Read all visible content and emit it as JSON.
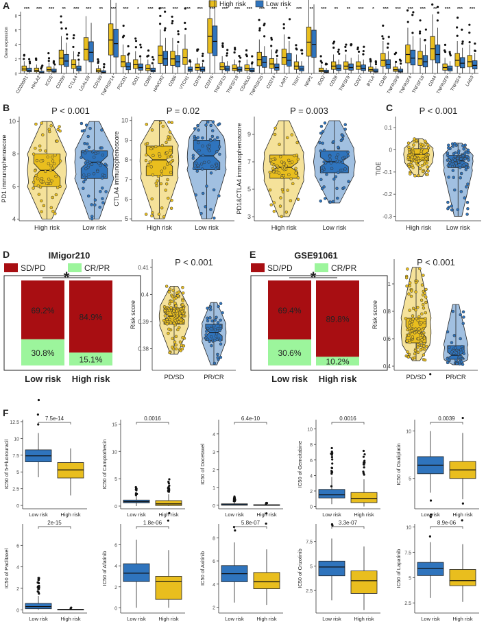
{
  "colors": {
    "high": "#E9BE1E",
    "low": "#2F74BD",
    "sdpd": "#A80E12",
    "crpr": "#9CF59C"
  },
  "panelA": {
    "letter": "A",
    "legend": {
      "high": "High risk",
      "low": "Low risk"
    },
    "ylabel": "Gene expression",
    "yticks": [
      0,
      2,
      4,
      6,
      8
    ],
    "ylim": [
      0,
      8.5
    ],
    "genes": [
      "CD200R1",
      "HHLA2",
      "ICOS",
      "CD200",
      "CTLA4",
      "LGALS9",
      "CD160",
      "TNFRSF14",
      "PDCD1",
      "IDO1",
      "CD80",
      "HAVCR2",
      "CD86",
      "VTCN1",
      "CD70",
      "CD276",
      "TNFSF15",
      "TNFSF18",
      "CD40LG",
      "TNFRSF25",
      "CD274",
      "LAIR1",
      "TIGIT",
      "NRP1",
      "IDO2",
      "CD28",
      "TNFSF9",
      "CD27",
      "BTLA",
      "CD48",
      "TNFRSF8",
      "TNFRSF4",
      "TNFSF18",
      "CD44",
      "TNFRSF9",
      "TNFSF4",
      "LAG3"
    ],
    "signif": [
      "***",
      "***",
      "***",
      "**",
      "***",
      "***",
      "**",
      "***",
      "***",
      "*",
      "***",
      "***",
      "***",
      "***",
      "***",
      "***",
      "***",
      "***",
      "***",
      "***",
      "***",
      "*",
      "***",
      "**",
      "***",
      "**",
      "**",
      "***",
      "*",
      "***",
      "***",
      "***",
      "***",
      "**",
      "***",
      "***",
      "***"
    ],
    "median_high": [
      0.6,
      0.4,
      0.5,
      2.1,
      1.2,
      3.3,
      0.35,
      4.6,
      1.6,
      1.2,
      0.7,
      2.5,
      2.0,
      2.2,
      0.8,
      5.1,
      0.9,
      0.7,
      0.7,
      1.9,
      1.3,
      2.2,
      1.0,
      4.3,
      0.4,
      1.0,
      1.0,
      1.0,
      0.5,
      1.8,
      0.5,
      2.6,
      2.0,
      3.4,
      0.8,
      1.8,
      1.6
    ],
    "median_low": [
      0.4,
      0.1,
      0.3,
      1.7,
      0.6,
      2.9,
      0.15,
      4.1,
      0.9,
      0.8,
      0.4,
      2.0,
      1.6,
      0.5,
      0.5,
      4.4,
      0.6,
      0.5,
      0.4,
      1.5,
      0.8,
      1.8,
      0.6,
      4.0,
      0.2,
      0.7,
      0.8,
      0.7,
      0.3,
      1.2,
      0.3,
      2.1,
      1.6,
      2.6,
      0.6,
      1.4,
      1.1
    ]
  },
  "panelB": {
    "letter": "B",
    "xcats": [
      "High risk",
      "Low risk"
    ],
    "plots": [
      {
        "ylabel": "PD1 immunophenoscore",
        "p": "P < 0.001",
        "ylim": [
          3.9,
          10.3
        ],
        "yticks": [
          4,
          6,
          8,
          10
        ],
        "high": {
          "q1": 6,
          "med": 7,
          "q3": 8,
          "min": 4,
          "max": 10
        },
        "low": {
          "q1": 6.5,
          "med": 7.5,
          "q3": 8.2,
          "min": 4,
          "max": 10
        }
      },
      {
        "ylabel": "CTLA4 immunophenoscore",
        "p": "P = 0.02",
        "ylim": [
          4.9,
          10.2
        ],
        "yticks": [
          5,
          6,
          7,
          8,
          9,
          10
        ],
        "high": {
          "q1": 7.2,
          "med": 8,
          "q3": 8.7,
          "min": 5,
          "max": 10
        },
        "low": {
          "q1": 7.5,
          "med": 8.2,
          "q3": 9,
          "min": 5,
          "max": 10
        }
      },
      {
        "ylabel": "PD1&CTLA4 immunophenoscore",
        "p": "P = 0.003",
        "ylim": [
          2.7,
          10.3
        ],
        "yticks": [
          3,
          5,
          7,
          9
        ],
        "high": {
          "q1": 5.8,
          "med": 6.6,
          "q3": 7.5,
          "min": 3,
          "max": 10
        },
        "low": {
          "q1": 6.2,
          "med": 7,
          "q3": 7.8,
          "min": 4,
          "max": 10
        }
      }
    ]
  },
  "panelC": {
    "letter": "C",
    "ylabel": "TIDE",
    "p": "P < 0.001",
    "xcats": [
      "High risk",
      "Low risk"
    ],
    "ylim": [
      -0.32,
      0.15
    ],
    "yticks": [
      -0.3,
      -0.2,
      -0.1,
      0.0,
      0.1
    ],
    "high": {
      "q1": -0.05,
      "med": -0.02,
      "q3": 0.005,
      "min": -0.12,
      "max": 0.05
    },
    "low": {
      "q1": -0.08,
      "med": -0.05,
      "q3": -0.025,
      "min": -0.3,
      "max": 0.03
    }
  },
  "panelD": {
    "letter": "D",
    "title": "IMigor210",
    "legend": [
      "SD/PD",
      "CR/PR"
    ],
    "bars": [
      {
        "label": "Low risk",
        "sdpd": 69.2,
        "crpr": 30.8,
        "sdpd_text": "69.2%",
        "crpr_text": "30.8%"
      },
      {
        "label": "High risk",
        "sdpd": 84.9,
        "crpr": 15.1,
        "sdpd_text": "84.9%",
        "crpr_text": "15.1%"
      }
    ],
    "star": "*",
    "violin": {
      "ylabel": "Risk score",
      "p": "P < 0.001",
      "xcats": [
        "PD/SD",
        "PR/CR"
      ],
      "ylim": [
        0.372,
        0.413
      ],
      "yticks": [
        0.38,
        0.39,
        0.4,
        0.41
      ],
      "a": {
        "q1": 0.389,
        "med": 0.392,
        "q3": 0.395,
        "min": 0.378,
        "max": 0.403
      },
      "b": {
        "q1": 0.383,
        "med": 0.386,
        "q3": 0.389,
        "min": 0.374,
        "max": 0.397
      }
    }
  },
  "panelE": {
    "letter": "E",
    "title": "GSE91061",
    "legend": [
      "SD/PD",
      "CR/PR"
    ],
    "bars": [
      {
        "label": "Low risk",
        "sdpd": 69.4,
        "crpr": 30.6,
        "sdpd_text": "69.4%",
        "crpr_text": "30.6%"
      },
      {
        "label": "High risk",
        "sdpd": 89.8,
        "crpr": 10.2,
        "sdpd_text": "89.8%",
        "crpr_text": "10.2%"
      }
    ],
    "star": "*",
    "violin": {
      "ylabel": "Risk score",
      "p": "P < 0.001",
      "xcats": [
        "PD/SD",
        "PR/CR"
      ],
      "ylim": [
        0.37,
        1.18
      ],
      "yticks": [
        0.4,
        0.6,
        0.8,
        1.0
      ],
      "a": {
        "q1": 0.57,
        "med": 0.65,
        "q3": 0.75,
        "min": 0.44,
        "max": 1.12
      },
      "b": {
        "q1": 0.45,
        "med": 0.48,
        "q3": 0.55,
        "min": 0.41,
        "max": 0.85
      }
    }
  },
  "panelF": {
    "letter": "F",
    "xcats": [
      "Low risk",
      "High  risk"
    ],
    "plots": [
      {
        "ylabel": "IC50 of 5-Fluorouracil",
        "p": "7.5e-14",
        "ylim": [
          -0.5,
          12.8
        ],
        "yticks": [
          0,
          2.5,
          5,
          7.5,
          10,
          12.5
        ],
        "low": {
          "q1": 6.5,
          "med": 7.4,
          "q3": 8.3,
          "min": 4.2,
          "max": 10.8
        },
        "high": {
          "q1": 4.1,
          "med": 5.3,
          "q3": 6.4,
          "min": 1.5,
          "max": 8.5
        }
      },
      {
        "ylabel": "IC50 of Camptothecin",
        "p": "0.0016",
        "ylim": [
          -0.5,
          15.8
        ],
        "yticks": [
          0,
          5,
          10,
          15
        ],
        "low": {
          "q1": 0.6,
          "med": 0.8,
          "q3": 1.1,
          "min": 0,
          "max": 1.8
        },
        "high": {
          "q1": 0.1,
          "med": 0.4,
          "q3": 1.0,
          "min": 0,
          "max": 2.2
        }
      },
      {
        "ylabel": "IC50 of Docetaxel",
        "p": "6.4e-10",
        "ylim": [
          -0.2,
          4.8
        ],
        "yticks": [
          0,
          1,
          2,
          3,
          4
        ],
        "low": {
          "q1": 0,
          "med": 0.03,
          "q3": 0.08,
          "min": 0,
          "max": 0.2
        },
        "high": {
          "q1": 0,
          "med": 0.01,
          "q3": 0.03,
          "min": 0,
          "max": 0.06
        }
      },
      {
        "ylabel": "IC50 of Gemcitabine",
        "p": "0.0016",
        "ylim": [
          -0.3,
          11.2
        ],
        "yticks": [
          0,
          2,
          4,
          6,
          8,
          10
        ],
        "low": {
          "q1": 1.1,
          "med": 1.5,
          "q3": 2.2,
          "min": 0.3,
          "max": 3.8
        },
        "high": {
          "q1": 0.5,
          "med": 1.0,
          "q3": 1.8,
          "min": 0,
          "max": 3.5
        }
      },
      {
        "ylabel": "IC50 of Oxaliplatin",
        "p": "0.0039",
        "ylim": [
          1.8,
          11.2
        ],
        "yticks": [
          5,
          10
        ],
        "low": {
          "q1": 5.5,
          "med": 6.4,
          "q3": 7.3,
          "min": 3.5,
          "max": 10
        },
        "high": {
          "q1": 5.0,
          "med": 5.9,
          "q3": 6.8,
          "min": 2.8,
          "max": 9.8
        }
      },
      {
        "ylabel": "IC50 of Paclitaxel",
        "p": "2e-15",
        "ylim": [
          -0.3,
          8.0
        ],
        "yticks": [
          0,
          2,
          4,
          6
        ],
        "low": {
          "q1": 0.1,
          "med": 0.3,
          "q3": 0.6,
          "min": 0,
          "max": 1.3
        },
        "high": {
          "q1": 0,
          "med": 0.02,
          "q3": 0.05,
          "min": 0,
          "max": 0.1
        }
      },
      {
        "ylabel": "IC50 of Afatinib",
        "p": "1.8e-06",
        "ylim": [
          -0.5,
          8.0
        ],
        "yticks": [
          0,
          2,
          4,
          6
        ],
        "low": {
          "q1": 2.5,
          "med": 3.3,
          "q3": 4.2,
          "min": 0,
          "max": 6.5
        },
        "high": {
          "q1": 0.8,
          "med": 2.5,
          "q3": 3.0,
          "min": 0,
          "max": 5.5
        }
      },
      {
        "ylabel": "IC50 of Axitinib",
        "p": "5.8e-07",
        "ylim": [
          1.5,
          9.2
        ],
        "yticks": [
          2,
          4,
          6,
          8
        ],
        "low": {
          "q1": 4.2,
          "med": 4.9,
          "q3": 5.6,
          "min": 2.4,
          "max": 7.6
        },
        "high": {
          "q1": 3.6,
          "med": 4.2,
          "q3": 5.0,
          "min": 2.2,
          "max": 7.0
        }
      },
      {
        "ylabel": "IC50 of Crizotinib",
        "p": "3.3e-07",
        "ylim": [
          0.2,
          9.3
        ],
        "yticks": [
          2.5,
          5.0,
          7.5
        ],
        "low": {
          "q1": 4.0,
          "med": 4.9,
          "q3": 5.5,
          "min": 1.5,
          "max": 7.8
        },
        "high": {
          "q1": 2.2,
          "med": 3.5,
          "q3": 4.5,
          "min": 0.5,
          "max": 7.0
        }
      },
      {
        "ylabel": "IC50 of Lapatinib",
        "p": "8.9e-06",
        "ylim": [
          1.5,
          10.3
        ],
        "yticks": [
          2.5,
          5.0,
          7.5,
          10.0
        ],
        "low": {
          "q1": 5.2,
          "med": 5.9,
          "q3": 6.5,
          "min": 3.0,
          "max": 8.5
        },
        "high": {
          "q1": 4.2,
          "med": 4.7,
          "q3": 5.8,
          "min": 2.6,
          "max": 8.3
        }
      }
    ]
  },
  "chart_data": [
    {
      "type": "box",
      "panel": "A",
      "ylabel": "Gene expression",
      "categories": [
        "CD200R1",
        "HHLA2",
        "ICOS",
        "CD200",
        "CTLA4",
        "LGALS9",
        "CD160",
        "TNFRSF14",
        "PDCD1",
        "IDO1",
        "CD80",
        "HAVCR2",
        "CD86",
        "VTCN1",
        "CD70",
        "CD276",
        "TNFSF15",
        "TNFSF18",
        "CD40LG",
        "TNFRSF25",
        "CD274",
        "LAIR1",
        "TIGIT",
        "NRP1",
        "IDO2",
        "CD28",
        "TNFSF9",
        "CD27",
        "BTLA",
        "CD48",
        "TNFRSF8",
        "TNFRSF4",
        "TNFSF18",
        "CD44",
        "TNFRSF9",
        "TNFSF4",
        "LAG3"
      ],
      "series": [
        {
          "name": "High risk"
        },
        {
          "name": "Low risk"
        }
      ],
      "legend": "top",
      "ylim": [
        0,
        8.5
      ]
    },
    {
      "type": "bar",
      "panel": "D",
      "title": "IMigor210",
      "categories": [
        "Low risk",
        "High risk"
      ],
      "series": [
        {
          "name": "SD/PD",
          "values": [
            69.2,
            84.9
          ]
        },
        {
          "name": "CR/PR",
          "values": [
            30.8,
            15.1
          ]
        }
      ]
    },
    {
      "type": "bar",
      "panel": "E",
      "title": "GSE91061",
      "categories": [
        "Low risk",
        "High risk"
      ],
      "series": [
        {
          "name": "SD/PD",
          "values": [
            69.4,
            89.8
          ]
        },
        {
          "name": "CR/PR",
          "values": [
            30.6,
            10.2
          ]
        }
      ]
    }
  ]
}
